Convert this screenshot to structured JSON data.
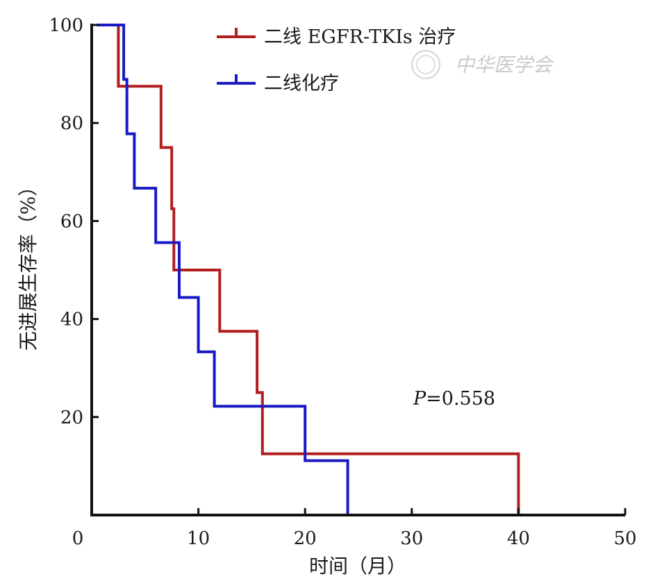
{
  "chart_data": {
    "type": "line",
    "subtype": "kaplan-meier-step",
    "xlabel": "时间（月）",
    "ylabel": "无进展生存率（%）",
    "xlim": [
      0,
      50
    ],
    "ylim": [
      0,
      100
    ],
    "xticks": [
      0,
      10,
      20,
      30,
      40,
      50
    ],
    "yticks": [
      20,
      40,
      60,
      80,
      100
    ],
    "grid": false,
    "legend_position": "top",
    "series": [
      {
        "name": "二线 EGFR-TKIs 治疗",
        "color": "#b01e1e",
        "x": [
          0.5,
          2.5,
          2.5,
          6.5,
          6.5,
          7.5,
          7.5,
          7.7,
          7.7,
          8.0,
          8.0,
          12.0,
          12.0,
          15.5,
          15.5,
          15.8,
          15.8,
          16.0,
          16.0,
          40.0,
          40.0
        ],
        "y": [
          100,
          100,
          87.5,
          87.5,
          75,
          75,
          62.5,
          62.5,
          50,
          50,
          50,
          50,
          37.5,
          37.5,
          25,
          25,
          25,
          25,
          12.5,
          12.5,
          0
        ]
      },
      {
        "name": "二线化疗",
        "color": "#1a1ac4",
        "x": [
          0.5,
          3.0,
          3.0,
          3.3,
          3.3,
          4.0,
          4.0,
          6.0,
          6.0,
          8.2,
          8.2,
          10.0,
          10.0,
          11.5,
          11.5,
          20.0,
          20.0,
          24.0,
          24.0
        ],
        "y": [
          100,
          100,
          88.9,
          88.9,
          77.8,
          77.8,
          66.7,
          66.7,
          55.6,
          55.6,
          44.4,
          44.4,
          33.3,
          33.3,
          22.2,
          22.2,
          11.1,
          11.1,
          0
        ]
      }
    ],
    "annotations": [
      {
        "italic_part": "P",
        "text": "=0.558"
      }
    ]
  },
  "watermark": {
    "text": "中华医学会"
  }
}
